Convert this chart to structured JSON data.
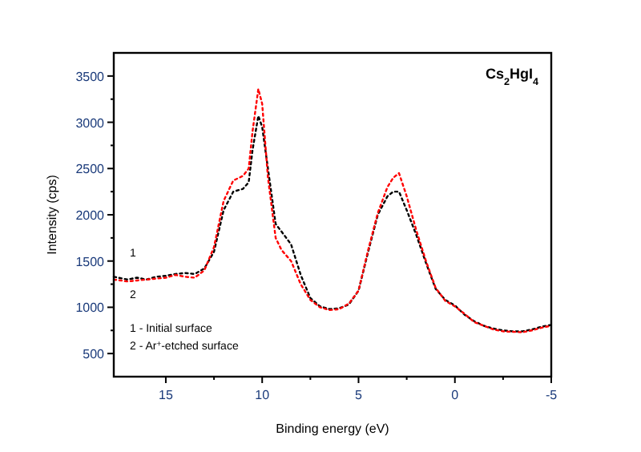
{
  "chart_data": {
    "type": "line",
    "title": "Cs$_{2}$HgI$_{4}$",
    "xlabel": "Binding energy (eV)",
    "ylabel": "Intensity (cps)",
    "xlim": [
      17.7,
      -5
    ],
    "ylim": [
      250,
      3750
    ],
    "xticks": [
      15,
      {
        "value": 12.5,
        "label": null
      },
      10,
      {
        "value": 7.5,
        "label": null
      },
      5,
      {
        "value": 2.5,
        "label": null
      },
      0,
      {
        "value": -2.5,
        "label": null
      },
      -5
    ],
    "yticks": [
      {
        "value": 750,
        "label": null
      },
      1000,
      {
        "value": 1250,
        "label": null
      },
      1500,
      {
        "value": 1750,
        "label": null
      },
      2000,
      {
        "value": 2250,
        "label": null
      },
      2500,
      {
        "value": 2750,
        "label": null
      },
      3000,
      {
        "value": 3250,
        "label": null
      },
      3500,
      500
    ],
    "x": [
      17.7,
      17.0,
      16.5,
      16.0,
      15.5,
      15.0,
      14.5,
      14.0,
      13.5,
      13.0,
      12.5,
      12.0,
      11.5,
      11.0,
      10.7,
      10.5,
      10.2,
      10.0,
      9.7,
      9.3,
      9.0,
      8.5,
      8.0,
      7.5,
      7.0,
      6.5,
      6.0,
      5.5,
      5.0,
      4.5,
      4.0,
      3.5,
      3.2,
      2.9,
      2.5,
      2.0,
      1.5,
      1.0,
      0.5,
      0.0,
      -0.5,
      -1.0,
      -1.5,
      -2.0,
      -2.5,
      -3.0,
      -3.5,
      -4.0,
      -4.5,
      -5.0
    ],
    "series": [
      {
        "color": "#000000",
        "values": [
          1330,
          1300,
          1320,
          1300,
          1330,
          1340,
          1360,
          1370,
          1360,
          1420,
          1600,
          2050,
          2250,
          2280,
          2350,
          2700,
          3070,
          2950,
          2500,
          1900,
          1820,
          1680,
          1350,
          1100,
          1010,
          980,
          990,
          1030,
          1180,
          1600,
          2000,
          2200,
          2250,
          2250,
          2050,
          1780,
          1480,
          1200,
          1080,
          1020,
          920,
          850,
          800,
          770,
          750,
          740,
          740,
          760,
          790,
          810
        ]
      },
      {
        "color": "#ff0000",
        "values": [
          1300,
          1280,
          1290,
          1300,
          1310,
          1320,
          1350,
          1330,
          1320,
          1400,
          1650,
          2150,
          2370,
          2420,
          2500,
          2900,
          3360,
          3200,
          2400,
          1750,
          1620,
          1500,
          1250,
          1080,
          1000,
          970,
          980,
          1040,
          1180,
          1620,
          2020,
          2300,
          2400,
          2450,
          2200,
          1830,
          1500,
          1210,
          1070,
          1010,
          930,
          840,
          800,
          760,
          740,
          735,
          730,
          750,
          780,
          800
        ]
      }
    ],
    "line_style": "dotted",
    "marker": "none",
    "grid": false,
    "annotations": [
      "1",
      "2",
      "1 - Initial surface",
      "2 - Ar$^{+}$-etched surface"
    ]
  }
}
